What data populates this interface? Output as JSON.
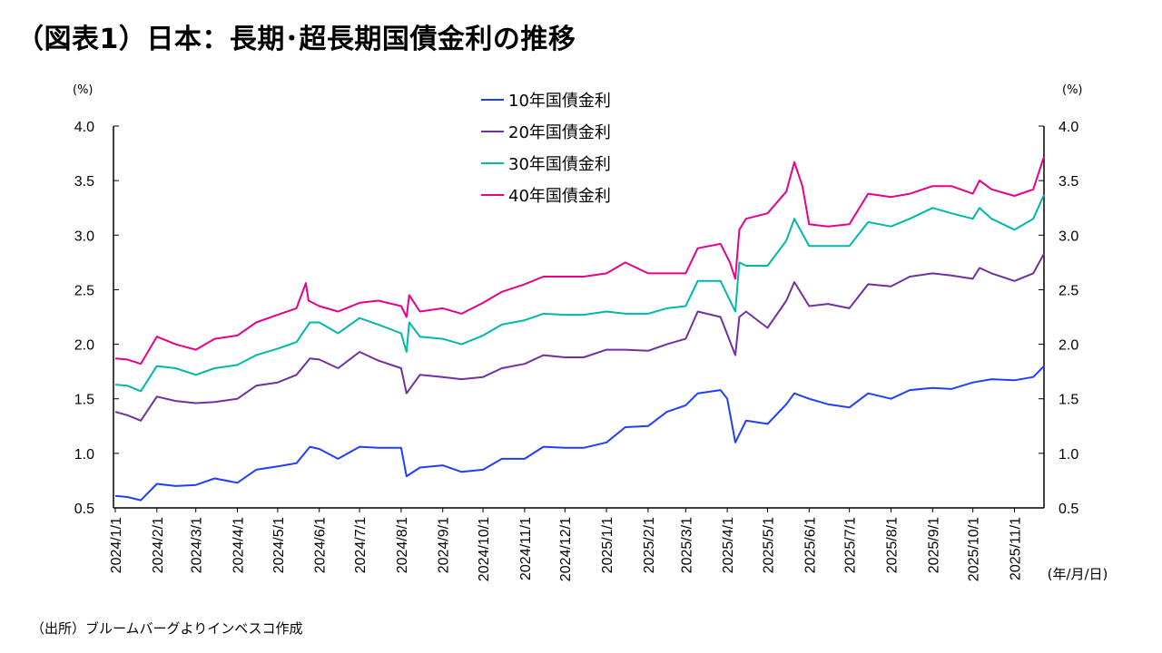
{
  "title": "（図表1）日本：長期･超長期国債金利の推移",
  "source": "（出所）ブルームバーグよりインベスコ作成",
  "chart_data": {
    "type": "line",
    "title": "（図表1）日本：長期･超長期国債金利の推移",
    "y_unit_left": "(%)",
    "y_unit_right": "(%)",
    "xlabel": "(年/月/日)",
    "ylim": [
      0.5,
      4.0
    ],
    "yticks": [
      "4.0",
      "3.5",
      "3.0",
      "2.5",
      "2.0",
      "1.5",
      "1.0",
      "0.5"
    ],
    "xlim": [
      "2024-01-01",
      "2025-11-23"
    ],
    "xticks": [
      "2024/1/1",
      "2024/2/1",
      "2024/3/1",
      "2024/4/1",
      "2024/5/1",
      "2024/6/1",
      "2024/7/1",
      "2024/8/1",
      "2024/9/1",
      "2024/10/1",
      "2024/11/1",
      "2024/12/1",
      "2025/1/1",
      "2025/2/1",
      "2025/3/1",
      "2025/4/1",
      "2025/5/1",
      "2025/6/1",
      "2025/7/1",
      "2025/8/1",
      "2025/9/1",
      "2025/10/1",
      "2025/11/1"
    ],
    "grid": false,
    "legend_position": "top-center",
    "series": [
      {
        "name": "10年国債金利",
        "color": "#1f3fff",
        "points": [
          [
            "2024-01-01",
            0.61
          ],
          [
            "2024-01-10",
            0.6
          ],
          [
            "2024-01-20",
            0.57
          ],
          [
            "2024-02-01",
            0.72
          ],
          [
            "2024-02-15",
            0.7
          ],
          [
            "2024-03-01",
            0.71
          ],
          [
            "2024-03-15",
            0.77
          ],
          [
            "2024-04-01",
            0.73
          ],
          [
            "2024-04-15",
            0.85
          ],
          [
            "2024-05-01",
            0.88
          ],
          [
            "2024-05-15",
            0.91
          ],
          [
            "2024-05-25",
            1.06
          ],
          [
            "2024-06-01",
            1.04
          ],
          [
            "2024-06-15",
            0.95
          ],
          [
            "2024-07-01",
            1.06
          ],
          [
            "2024-07-15",
            1.05
          ],
          [
            "2024-08-01",
            1.05
          ],
          [
            "2024-08-05",
            0.79
          ],
          [
            "2024-08-15",
            0.87
          ],
          [
            "2024-09-01",
            0.89
          ],
          [
            "2024-09-15",
            0.83
          ],
          [
            "2024-10-01",
            0.85
          ],
          [
            "2024-10-15",
            0.95
          ],
          [
            "2024-11-01",
            0.95
          ],
          [
            "2024-11-15",
            1.06
          ],
          [
            "2024-12-01",
            1.05
          ],
          [
            "2024-12-15",
            1.05
          ],
          [
            "2025-01-01",
            1.1
          ],
          [
            "2025-01-15",
            1.24
          ],
          [
            "2025-02-01",
            1.25
          ],
          [
            "2025-02-15",
            1.38
          ],
          [
            "2025-03-01",
            1.44
          ],
          [
            "2025-03-10",
            1.55
          ],
          [
            "2025-03-27",
            1.58
          ],
          [
            "2025-04-01",
            1.5
          ],
          [
            "2025-04-07",
            1.1
          ],
          [
            "2025-04-15",
            1.3
          ],
          [
            "2025-05-01",
            1.27
          ],
          [
            "2025-05-15",
            1.45
          ],
          [
            "2025-05-21",
            1.55
          ],
          [
            "2025-06-01",
            1.5
          ],
          [
            "2025-06-15",
            1.45
          ],
          [
            "2025-07-01",
            1.42
          ],
          [
            "2025-07-15",
            1.55
          ],
          [
            "2025-08-01",
            1.5
          ],
          [
            "2025-08-15",
            1.58
          ],
          [
            "2025-09-01",
            1.6
          ],
          [
            "2025-09-15",
            1.59
          ],
          [
            "2025-10-01",
            1.65
          ],
          [
            "2025-10-15",
            1.68
          ],
          [
            "2025-11-01",
            1.67
          ],
          [
            "2025-11-15",
            1.7
          ],
          [
            "2025-11-23",
            1.8
          ]
        ]
      },
      {
        "name": "20年国債金利",
        "color": "#7030a0",
        "points": [
          [
            "2024-01-01",
            1.38
          ],
          [
            "2024-01-10",
            1.35
          ],
          [
            "2024-01-20",
            1.3
          ],
          [
            "2024-02-01",
            1.52
          ],
          [
            "2024-02-15",
            1.48
          ],
          [
            "2024-03-01",
            1.46
          ],
          [
            "2024-03-15",
            1.47
          ],
          [
            "2024-04-01",
            1.5
          ],
          [
            "2024-04-15",
            1.62
          ],
          [
            "2024-05-01",
            1.65
          ],
          [
            "2024-05-15",
            1.72
          ],
          [
            "2024-05-25",
            1.87
          ],
          [
            "2024-06-01",
            1.86
          ],
          [
            "2024-06-15",
            1.78
          ],
          [
            "2024-07-01",
            1.93
          ],
          [
            "2024-07-15",
            1.85
          ],
          [
            "2024-08-01",
            1.78
          ],
          [
            "2024-08-05",
            1.55
          ],
          [
            "2024-08-15",
            1.72
          ],
          [
            "2024-09-01",
            1.7
          ],
          [
            "2024-09-15",
            1.68
          ],
          [
            "2024-10-01",
            1.7
          ],
          [
            "2024-10-15",
            1.78
          ],
          [
            "2024-11-01",
            1.82
          ],
          [
            "2024-11-15",
            1.9
          ],
          [
            "2024-12-01",
            1.88
          ],
          [
            "2024-12-15",
            1.88
          ],
          [
            "2025-01-01",
            1.95
          ],
          [
            "2025-01-15",
            1.95
          ],
          [
            "2025-02-01",
            1.94
          ],
          [
            "2025-02-15",
            2.0
          ],
          [
            "2025-03-01",
            2.05
          ],
          [
            "2025-03-10",
            2.3
          ],
          [
            "2025-03-27",
            2.25
          ],
          [
            "2025-04-07",
            1.9
          ],
          [
            "2025-04-10",
            2.25
          ],
          [
            "2025-04-15",
            2.3
          ],
          [
            "2025-05-01",
            2.15
          ],
          [
            "2025-05-15",
            2.4
          ],
          [
            "2025-05-21",
            2.57
          ],
          [
            "2025-06-01",
            2.35
          ],
          [
            "2025-06-15",
            2.37
          ],
          [
            "2025-07-01",
            2.33
          ],
          [
            "2025-07-15",
            2.55
          ],
          [
            "2025-08-01",
            2.53
          ],
          [
            "2025-08-15",
            2.62
          ],
          [
            "2025-09-01",
            2.65
          ],
          [
            "2025-09-15",
            2.63
          ],
          [
            "2025-10-01",
            2.6
          ],
          [
            "2025-10-06",
            2.7
          ],
          [
            "2025-10-15",
            2.65
          ],
          [
            "2025-11-01",
            2.58
          ],
          [
            "2025-11-15",
            2.65
          ],
          [
            "2025-11-23",
            2.83
          ]
        ]
      },
      {
        "name": "30年国債金利",
        "color": "#00b8a9",
        "points": [
          [
            "2024-01-01",
            1.63
          ],
          [
            "2024-01-10",
            1.62
          ],
          [
            "2024-01-20",
            1.57
          ],
          [
            "2024-02-01",
            1.8
          ],
          [
            "2024-02-15",
            1.78
          ],
          [
            "2024-03-01",
            1.72
          ],
          [
            "2024-03-15",
            1.78
          ],
          [
            "2024-04-01",
            1.81
          ],
          [
            "2024-04-15",
            1.9
          ],
          [
            "2024-05-01",
            1.96
          ],
          [
            "2024-05-15",
            2.02
          ],
          [
            "2024-05-25",
            2.2
          ],
          [
            "2024-06-01",
            2.2
          ],
          [
            "2024-06-15",
            2.1
          ],
          [
            "2024-07-01",
            2.24
          ],
          [
            "2024-07-15",
            2.18
          ],
          [
            "2024-08-01",
            2.1
          ],
          [
            "2024-08-05",
            1.93
          ],
          [
            "2024-08-07",
            2.2
          ],
          [
            "2024-08-15",
            2.07
          ],
          [
            "2024-09-01",
            2.05
          ],
          [
            "2024-09-15",
            2.0
          ],
          [
            "2024-10-01",
            2.08
          ],
          [
            "2024-10-15",
            2.18
          ],
          [
            "2024-11-01",
            2.22
          ],
          [
            "2024-11-15",
            2.28
          ],
          [
            "2024-12-01",
            2.27
          ],
          [
            "2024-12-15",
            2.27
          ],
          [
            "2025-01-01",
            2.3
          ],
          [
            "2025-01-15",
            2.28
          ],
          [
            "2025-02-01",
            2.28
          ],
          [
            "2025-02-15",
            2.33
          ],
          [
            "2025-03-01",
            2.35
          ],
          [
            "2025-03-10",
            2.58
          ],
          [
            "2025-03-27",
            2.58
          ],
          [
            "2025-04-07",
            2.3
          ],
          [
            "2025-04-10",
            2.75
          ],
          [
            "2025-04-15",
            2.72
          ],
          [
            "2025-05-01",
            2.72
          ],
          [
            "2025-05-15",
            2.95
          ],
          [
            "2025-05-21",
            3.15
          ],
          [
            "2025-06-01",
            2.9
          ],
          [
            "2025-06-15",
            2.9
          ],
          [
            "2025-07-01",
            2.9
          ],
          [
            "2025-07-15",
            3.12
          ],
          [
            "2025-08-01",
            3.08
          ],
          [
            "2025-08-15",
            3.15
          ],
          [
            "2025-09-01",
            3.25
          ],
          [
            "2025-09-15",
            3.2
          ],
          [
            "2025-10-01",
            3.15
          ],
          [
            "2025-10-06",
            3.25
          ],
          [
            "2025-10-15",
            3.15
          ],
          [
            "2025-11-01",
            3.05
          ],
          [
            "2025-11-15",
            3.15
          ],
          [
            "2025-11-23",
            3.37
          ]
        ]
      },
      {
        "name": "40年国債金利",
        "color": "#e6008a",
        "points": [
          [
            "2024-01-01",
            1.87
          ],
          [
            "2024-01-10",
            1.86
          ],
          [
            "2024-01-20",
            1.82
          ],
          [
            "2024-02-01",
            2.07
          ],
          [
            "2024-02-15",
            2.0
          ],
          [
            "2024-03-01",
            1.95
          ],
          [
            "2024-03-15",
            2.05
          ],
          [
            "2024-04-01",
            2.08
          ],
          [
            "2024-04-15",
            2.2
          ],
          [
            "2024-05-01",
            2.27
          ],
          [
            "2024-05-15",
            2.33
          ],
          [
            "2024-05-22",
            2.56
          ],
          [
            "2024-05-24",
            2.4
          ],
          [
            "2024-06-01",
            2.35
          ],
          [
            "2024-06-15",
            2.3
          ],
          [
            "2024-07-01",
            2.38
          ],
          [
            "2024-07-15",
            2.4
          ],
          [
            "2024-08-01",
            2.35
          ],
          [
            "2024-08-05",
            2.25
          ],
          [
            "2024-08-07",
            2.45
          ],
          [
            "2024-08-15",
            2.3
          ],
          [
            "2024-09-01",
            2.33
          ],
          [
            "2024-09-15",
            2.28
          ],
          [
            "2024-10-01",
            2.38
          ],
          [
            "2024-10-15",
            2.48
          ],
          [
            "2024-11-01",
            2.55
          ],
          [
            "2024-11-15",
            2.62
          ],
          [
            "2024-12-01",
            2.62
          ],
          [
            "2024-12-15",
            2.62
          ],
          [
            "2025-01-01",
            2.65
          ],
          [
            "2025-01-15",
            2.75
          ],
          [
            "2025-02-01",
            2.65
          ],
          [
            "2025-02-15",
            2.65
          ],
          [
            "2025-03-01",
            2.65
          ],
          [
            "2025-03-10",
            2.88
          ],
          [
            "2025-03-27",
            2.92
          ],
          [
            "2025-04-03",
            2.75
          ],
          [
            "2025-04-07",
            2.6
          ],
          [
            "2025-04-10",
            3.05
          ],
          [
            "2025-04-15",
            3.15
          ],
          [
            "2025-05-01",
            3.2
          ],
          [
            "2025-05-15",
            3.4
          ],
          [
            "2025-05-21",
            3.67
          ],
          [
            "2025-05-27",
            3.45
          ],
          [
            "2025-06-01",
            3.1
          ],
          [
            "2025-06-15",
            3.08
          ],
          [
            "2025-07-01",
            3.1
          ],
          [
            "2025-07-15",
            3.38
          ],
          [
            "2025-08-01",
            3.35
          ],
          [
            "2025-08-15",
            3.38
          ],
          [
            "2025-09-01",
            3.45
          ],
          [
            "2025-09-15",
            3.45
          ],
          [
            "2025-10-01",
            3.38
          ],
          [
            "2025-10-06",
            3.5
          ],
          [
            "2025-10-15",
            3.42
          ],
          [
            "2025-11-01",
            3.36
          ],
          [
            "2025-11-15",
            3.42
          ],
          [
            "2025-11-23",
            3.72
          ]
        ]
      }
    ]
  }
}
